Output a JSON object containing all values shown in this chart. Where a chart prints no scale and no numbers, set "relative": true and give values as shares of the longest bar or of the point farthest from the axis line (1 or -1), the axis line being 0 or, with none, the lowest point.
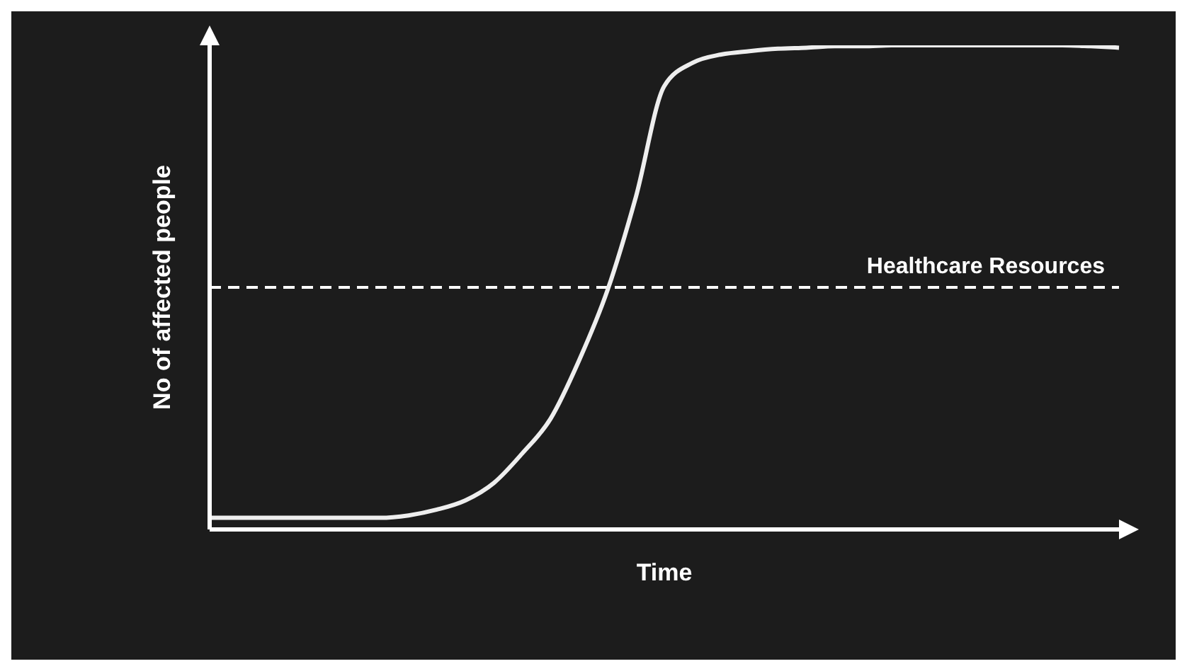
{
  "chart_data": {
    "type": "line",
    "relative": true,
    "xlabel": "Time",
    "ylabel": "No of affected people",
    "categories": [
      null,
      null,
      null,
      null,
      null,
      null,
      null,
      null,
      null,
      null,
      null,
      null,
      null,
      null,
      null,
      null,
      null,
      null,
      null,
      null,
      null,
      null,
      null,
      null,
      null,
      null,
      null,
      null,
      null,
      null,
      null,
      null,
      null
    ],
    "series": [
      {
        "color": "#eeeeee",
        "values": [
          0.024,
          0.024,
          0.024,
          0.024,
          0.024,
          0.024,
          0.024,
          0.029,
          0.041,
          0.06,
          0.096,
          0.157,
          0.229,
          0.349,
          0.494,
          0.687,
          0.916,
          0.964,
          0.981,
          0.988,
          0.993,
          0.995,
          0.998,
          0.998,
          1,
          1,
          1,
          1,
          1,
          1,
          1,
          0.998,
          0.995
        ]
      }
    ],
    "ref_lines": [
      {
        "axis": "y",
        "value": 0.5,
        "label": "Healthcare Resources",
        "color": "#ffffff",
        "line_style": "dashed"
      }
    ],
    "marker": "none",
    "line_style": "solid"
  }
}
